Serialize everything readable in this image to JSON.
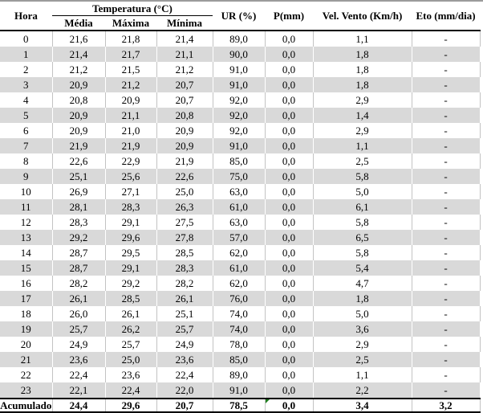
{
  "table": {
    "header": {
      "hora": "Hora",
      "temperatura_group": "Temperatura (°C)",
      "media": "Média",
      "maxima": "Máxima",
      "minima": "Mínima",
      "ur": "UR (%)",
      "p": "P(mm)",
      "vento": "Vel. Vento (Km/h)",
      "eto": "Eto (mm/dia)"
    },
    "rows": [
      [
        "0",
        "21,6",
        "21,8",
        "21,4",
        "89,0",
        "0,0",
        "1,1",
        "-"
      ],
      [
        "1",
        "21,4",
        "21,7",
        "21,1",
        "90,0",
        "0,0",
        "1,8",
        "-"
      ],
      [
        "2",
        "21,2",
        "21,5",
        "21,2",
        "91,0",
        "0,0",
        "1,8",
        "-"
      ],
      [
        "3",
        "20,9",
        "21,2",
        "20,7",
        "91,0",
        "0,0",
        "1,8",
        "-"
      ],
      [
        "4",
        "20,8",
        "20,9",
        "20,7",
        "92,0",
        "0,0",
        "2,9",
        "-"
      ],
      [
        "5",
        "20,9",
        "21,1",
        "20,8",
        "92,0",
        "0,0",
        "1,4",
        "-"
      ],
      [
        "6",
        "20,9",
        "21,0",
        "20,9",
        "92,0",
        "0,0",
        "2,9",
        "-"
      ],
      [
        "7",
        "21,9",
        "21,9",
        "20,9",
        "91,0",
        "0,0",
        "1,1",
        "-"
      ],
      [
        "8",
        "22,6",
        "22,9",
        "21,9",
        "85,0",
        "0,0",
        "2,5",
        "-"
      ],
      [
        "9",
        "25,1",
        "25,6",
        "22,6",
        "75,0",
        "0,0",
        "5,8",
        "-"
      ],
      [
        "10",
        "26,9",
        "27,1",
        "25,0",
        "63,0",
        "0,0",
        "5,0",
        "-"
      ],
      [
        "11",
        "28,1",
        "28,3",
        "26,3",
        "61,0",
        "0,0",
        "6,1",
        "-"
      ],
      [
        "12",
        "28,3",
        "29,1",
        "27,5",
        "63,0",
        "0,0",
        "5,8",
        "-"
      ],
      [
        "13",
        "29,2",
        "29,6",
        "27,8",
        "57,0",
        "0,0",
        "6,5",
        "-"
      ],
      [
        "14",
        "28,7",
        "29,5",
        "28,5",
        "62,0",
        "0,0",
        "5,8",
        "-"
      ],
      [
        "15",
        "28,7",
        "29,1",
        "28,3",
        "61,0",
        "0,0",
        "5,4",
        "-"
      ],
      [
        "16",
        "28,2",
        "29,2",
        "28,2",
        "62,0",
        "0,0",
        "4,7",
        "-"
      ],
      [
        "17",
        "26,1",
        "28,5",
        "26,1",
        "76,0",
        "0,0",
        "1,8",
        "-"
      ],
      [
        "18",
        "26,0",
        "26,1",
        "25,1",
        "74,0",
        "0,0",
        "5,0",
        "-"
      ],
      [
        "19",
        "25,7",
        "26,2",
        "25,7",
        "74,0",
        "0,0",
        "3,6",
        "-"
      ],
      [
        "20",
        "24,9",
        "25,7",
        "24,9",
        "78,0",
        "0,0",
        "2,9",
        "-"
      ],
      [
        "21",
        "23,6",
        "25,0",
        "23,6",
        "85,0",
        "0,0",
        "2,5",
        "-"
      ],
      [
        "22",
        "22,4",
        "23,6",
        "22,4",
        "89,0",
        "0,0",
        "1,1",
        "-"
      ],
      [
        "23",
        "22,1",
        "22,4",
        "22,0",
        "91,0",
        "0,0",
        "2,2",
        "-"
      ]
    ],
    "footer": {
      "cells": [
        "Acumulado",
        "24,4",
        "29,6",
        "20,7",
        "78,5",
        "0,0",
        "3,4",
        "3,2"
      ],
      "error_indicator_cell": "p",
      "error_indicator": "green-triangle"
    },
    "column_keys": [
      "hora",
      "media",
      "maxima",
      "minima",
      "ur",
      "p",
      "vento",
      "eto"
    ]
  },
  "colors": {
    "band_gray": "#d9d9d9",
    "gridline_gray": "#c3c3c3",
    "border_black": "#000000",
    "error_green": "#1d7d1d"
  }
}
